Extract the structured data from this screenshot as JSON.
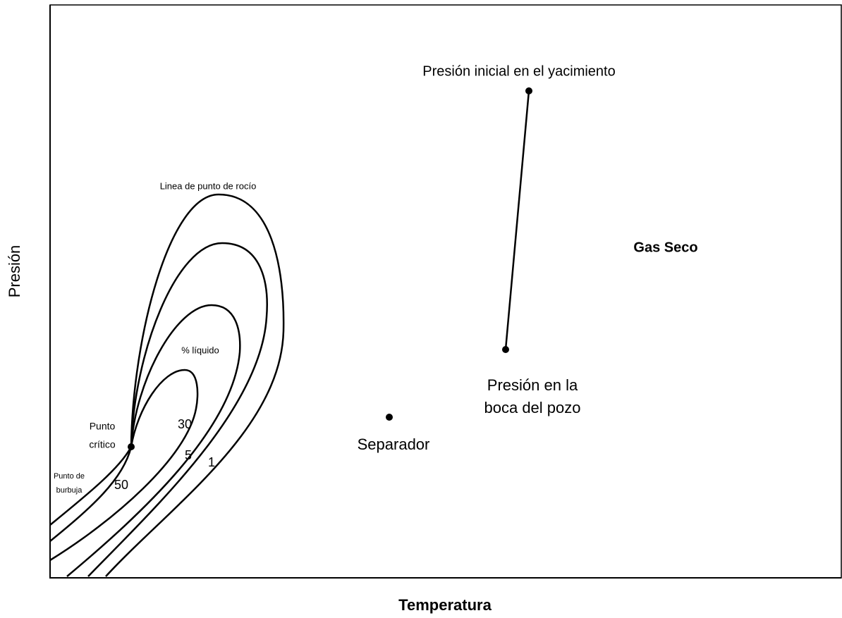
{
  "axes": {
    "y_label": "Presión",
    "x_label": "Temperatura"
  },
  "region_label": "Gas Seco",
  "points": {
    "initial": "Presión inicial en el yacimiento",
    "wellhead": [
      "Presión en la",
      "boca del pozo"
    ],
    "separator": "Separador",
    "critical": [
      "Punto",
      "crítico"
    ],
    "bubble": [
      "Punto de",
      "burbuja"
    ]
  },
  "curves": {
    "dew_line": "Linea de punto de rocío",
    "liquid": "% líquido",
    "quality_labels": [
      "50",
      "30",
      "5",
      "1"
    ]
  }
}
